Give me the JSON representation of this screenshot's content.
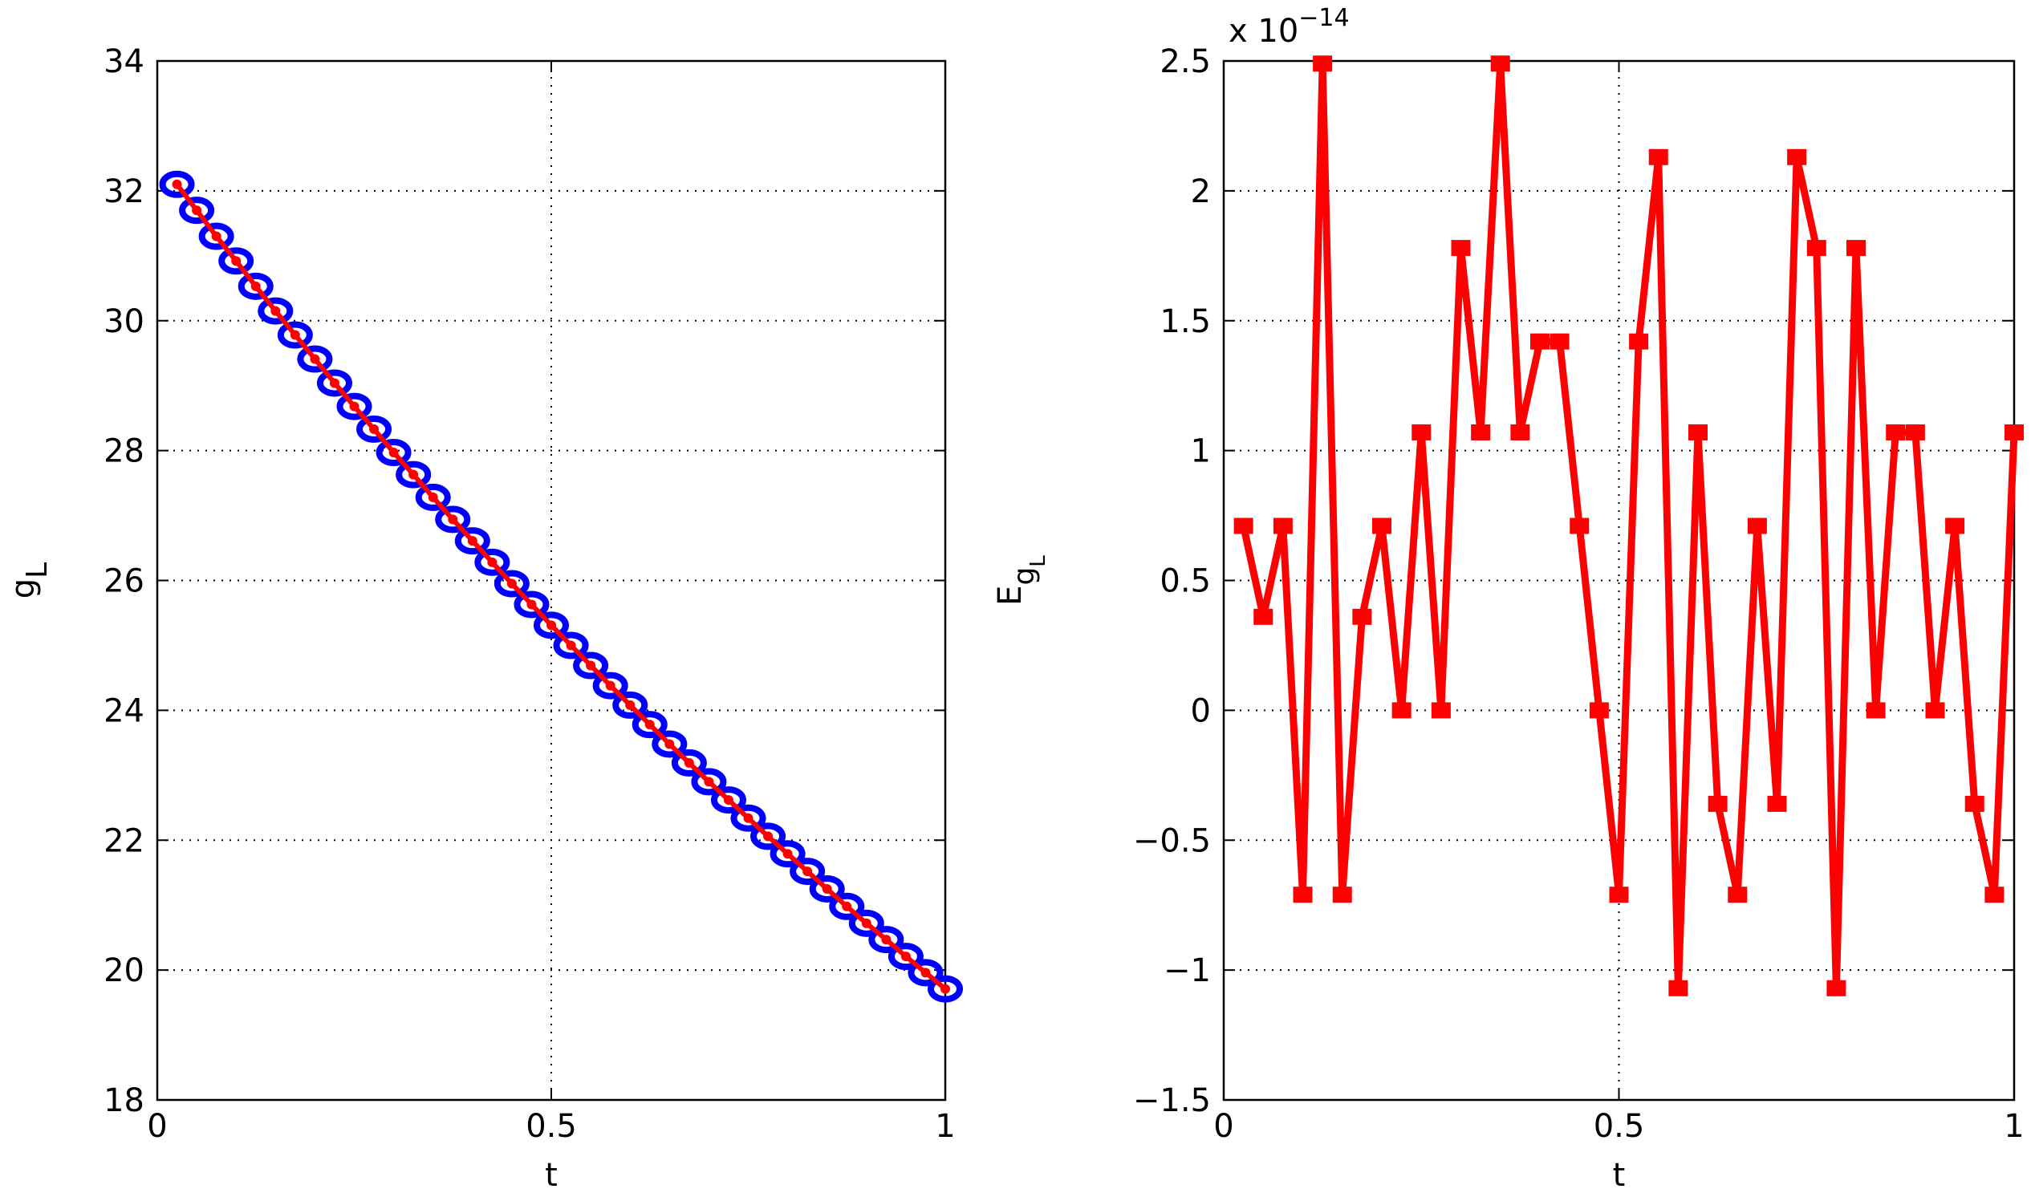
{
  "chart_data": [
    {
      "type": "line",
      "xlabel": "t",
      "ylabel": "g",
      "ylabel_sub": "L",
      "x": [
        0.025,
        0.05,
        0.075,
        0.1,
        0.125,
        0.15,
        0.175,
        0.2,
        0.225,
        0.25,
        0.275,
        0.3,
        0.325,
        0.35,
        0.375,
        0.4,
        0.425,
        0.45,
        0.475,
        0.5,
        0.525,
        0.55,
        0.575,
        0.6,
        0.625,
        0.65,
        0.675,
        0.7,
        0.725,
        0.75,
        0.775,
        0.8,
        0.825,
        0.85,
        0.875,
        0.9,
        0.925,
        0.95,
        0.975,
        1
      ],
      "series": [
        {
          "color": "#0000ff",
          "marker": "circle",
          "line": false,
          "values": [
            32.1,
            31.7,
            31.3,
            30.92,
            30.53,
            30.15,
            29.78,
            29.41,
            29.04,
            28.68,
            28.33,
            27.97,
            27.63,
            27.28,
            26.94,
            26.61,
            26.28,
            25.95,
            25.63,
            25.31,
            25.0,
            24.69,
            24.38,
            24.08,
            23.78,
            23.48,
            23.19,
            22.9,
            22.62,
            22.34,
            22.06,
            21.79,
            21.52,
            21.25,
            20.98,
            20.72,
            20.47,
            20.21,
            19.96,
            19.71
          ]
        },
        {
          "color": "#ff0000",
          "marker": "dot",
          "line": true,
          "values": [
            32.1,
            31.7,
            31.3,
            30.92,
            30.53,
            30.15,
            29.78,
            29.41,
            29.04,
            28.68,
            28.33,
            27.97,
            27.63,
            27.28,
            26.94,
            26.61,
            26.28,
            25.95,
            25.63,
            25.31,
            25.0,
            24.69,
            24.38,
            24.08,
            23.78,
            23.48,
            23.19,
            22.9,
            22.62,
            22.34,
            22.06,
            21.79,
            21.52,
            21.25,
            20.98,
            20.72,
            20.47,
            20.21,
            19.96,
            19.71
          ]
        }
      ],
      "xlim": [
        0,
        1
      ],
      "ylim": [
        18,
        34
      ],
      "xticks": [
        0,
        0.5,
        1
      ],
      "yticks": [
        18,
        20,
        22,
        24,
        26,
        28,
        30,
        32,
        34
      ],
      "grid": true
    },
    {
      "type": "line",
      "xlabel": "t",
      "ylabel": "E",
      "ylabel_sub": "g",
      "ylabel_subsub": "L",
      "exponent_label": "x 10",
      "exponent": "−14",
      "x": [
        0.025,
        0.05,
        0.075,
        0.1,
        0.125,
        0.15,
        0.175,
        0.2,
        0.225,
        0.25,
        0.275,
        0.3,
        0.325,
        0.35,
        0.375,
        0.4,
        0.425,
        0.45,
        0.475,
        0.5,
        0.525,
        0.55,
        0.575,
        0.6,
        0.625,
        0.65,
        0.675,
        0.7,
        0.725,
        0.75,
        0.775,
        0.8,
        0.825,
        0.85,
        0.875,
        0.9,
        0.925,
        0.95,
        0.975,
        1
      ],
      "series": [
        {
          "color": "#ff0000",
          "marker": "square",
          "line": true,
          "values": [
            0.71,
            0.36,
            0.71,
            -0.71,
            2.49,
            -0.71,
            0.36,
            0.71,
            0,
            1.07,
            0,
            1.78,
            1.07,
            2.49,
            1.07,
            1.42,
            1.42,
            0.71,
            0,
            -0.71,
            1.42,
            2.13,
            -1.07,
            1.07,
            -0.36,
            -0.71,
            0.71,
            -0.36,
            2.13,
            1.78,
            -1.07,
            1.78,
            0,
            1.07,
            1.07,
            0,
            0.71,
            -0.36,
            -0.71,
            1.07
          ]
        }
      ],
      "xlim": [
        0,
        1
      ],
      "ylim": [
        -1.5,
        2.5
      ],
      "xticks": [
        0,
        0.5,
        1
      ],
      "yticks": [
        {
          "value": -1.5,
          "label": "−1.5"
        },
        {
          "value": -1,
          "label": "−1"
        },
        {
          "value": -0.5,
          "label": "−0.5"
        },
        0,
        0.5,
        1,
        1.5,
        2,
        2.5
      ],
      "grid": true
    }
  ]
}
